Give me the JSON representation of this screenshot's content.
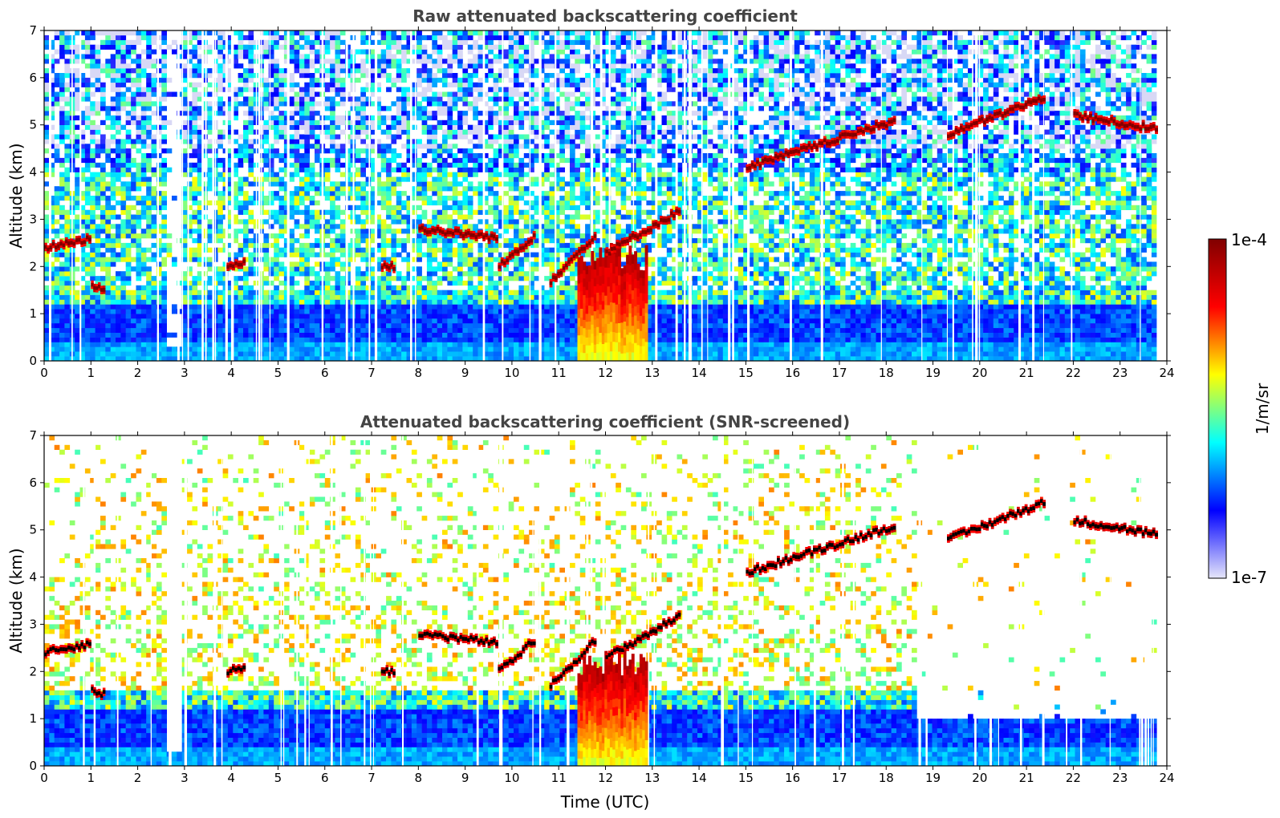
{
  "colors": {
    "jet_stops": [
      "#e6e6fa",
      "#0000ff",
      "#00ffff",
      "#ffff00",
      "#ff0000",
      "#800000"
    ],
    "low_purple": "#d8d8f5",
    "cloud_core": "#800000",
    "screened_core": "#000000"
  },
  "colorbar": {
    "label": "1/m/sr",
    "max_label": "1e-4",
    "min_label": "1e-7",
    "range": [
      1e-07,
      0.0001
    ],
    "scale": "log"
  },
  "chart_data": [
    {
      "type": "heatmap",
      "title": "Raw attenuated backscattering coefficient",
      "xlabel": "",
      "ylabel": "Altitude (km)",
      "xlim": [
        0,
        24
      ],
      "ylim": [
        0,
        7
      ],
      "xticks": [
        "0",
        "1",
        "2",
        "3",
        "4",
        "5",
        "6",
        "7",
        "8",
        "9",
        "10",
        "11",
        "12",
        "13",
        "14",
        "15",
        "16",
        "17",
        "18",
        "19",
        "20",
        "21",
        "22",
        "23",
        "24"
      ],
      "yticks": [
        "0",
        "1",
        "2",
        "3",
        "4",
        "5",
        "6",
        "7"
      ],
      "cloud_layers": [
        {
          "time": [
            0.0,
            1.0
          ],
          "altitude": [
            2.4,
            2.6
          ]
        },
        {
          "time": [
            1.0,
            1.3
          ],
          "altitude": [
            1.6,
            1.5
          ]
        },
        {
          "time": [
            3.9,
            4.3
          ],
          "altitude": [
            2.0,
            2.1
          ]
        },
        {
          "time": [
            7.2,
            7.5
          ],
          "altitude": [
            2.0,
            2.0
          ]
        },
        {
          "time": [
            8.0,
            9.7
          ],
          "altitude": [
            2.8,
            2.6
          ]
        },
        {
          "time": [
            9.7,
            10.5
          ],
          "altitude": [
            2.0,
            2.7
          ]
        },
        {
          "time": [
            10.8,
            11.8
          ],
          "altitude": [
            1.7,
            2.7
          ]
        },
        {
          "time": [
            12.0,
            13.6
          ],
          "altitude": [
            2.3,
            3.2
          ]
        },
        {
          "time": [
            15.0,
            18.2
          ],
          "altitude": [
            4.1,
            5.1
          ]
        },
        {
          "time": [
            19.3,
            21.4
          ],
          "altitude": [
            4.8,
            5.6
          ]
        },
        {
          "time": [
            22.0,
            23.8
          ],
          "altitude": [
            5.2,
            4.9
          ]
        }
      ],
      "precipitation": [
        {
          "time": [
            11.4,
            12.9
          ],
          "altitude_top": 2.5
        }
      ]
    },
    {
      "type": "heatmap",
      "title": "Attenuated backscattering coefficient (SNR-screened)",
      "xlabel": "Time (UTC)",
      "ylabel": "Altitude (km)",
      "xlim": [
        0,
        24
      ],
      "ylim": [
        0,
        7
      ],
      "xticks": [
        "0",
        "1",
        "2",
        "3",
        "4",
        "5",
        "6",
        "7",
        "8",
        "9",
        "10",
        "11",
        "12",
        "13",
        "14",
        "15",
        "16",
        "17",
        "18",
        "19",
        "20",
        "21",
        "22",
        "23",
        "24"
      ],
      "yticks": [
        "0",
        "1",
        "2",
        "3",
        "4",
        "5",
        "6",
        "7"
      ]
    }
  ]
}
